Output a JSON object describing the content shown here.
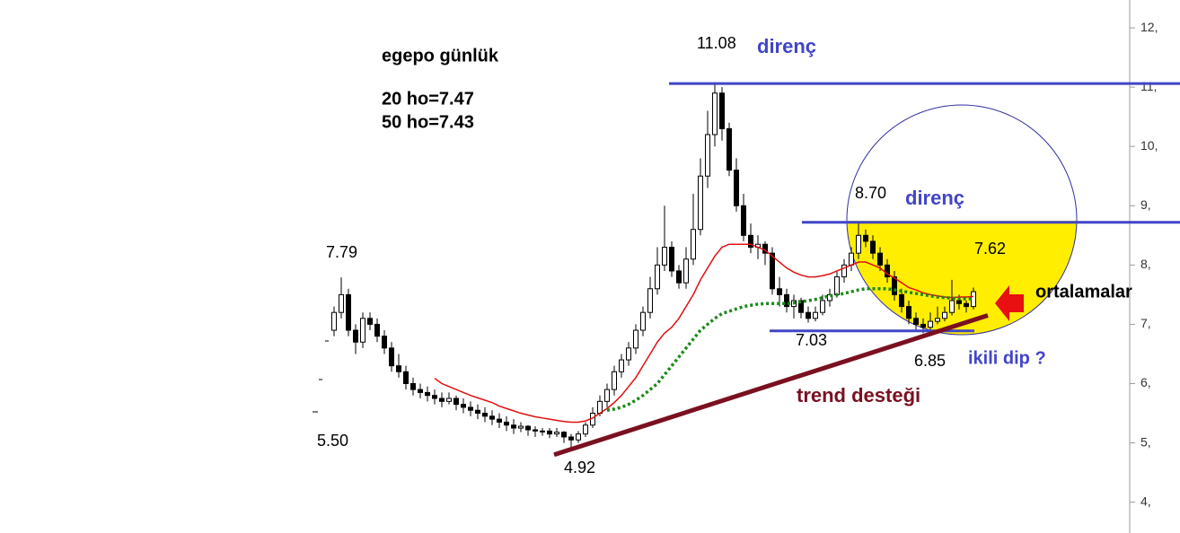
{
  "chart_data": {
    "type": "candlestick",
    "ylim": [
      3.48,
      12.47
    ],
    "yticks": [
      {
        "value": 4,
        "label": "4,"
      },
      {
        "value": 5,
        "label": "5,"
      },
      {
        "value": 6,
        "label": "6,"
      },
      {
        "value": 7,
        "label": "7,"
      },
      {
        "value": 8,
        "label": "8,"
      },
      {
        "value": 9,
        "label": "9,"
      },
      {
        "value": 10,
        "label": "10,"
      },
      {
        "value": 11,
        "label": "11,"
      },
      {
        "value": 12,
        "label": "12,"
      }
    ],
    "candles": [
      [
        6.9,
        7.3,
        6.8,
        7.2
      ],
      [
        7.2,
        7.79,
        7.1,
        7.5
      ],
      [
        7.5,
        7.6,
        6.8,
        6.9
      ],
      [
        6.9,
        7.0,
        6.5,
        6.7
      ],
      [
        6.7,
        7.2,
        6.6,
        7.1
      ],
      [
        7.1,
        7.2,
        6.9,
        7.0
      ],
      [
        7.0,
        7.1,
        6.7,
        6.8
      ],
      [
        6.8,
        6.9,
        6.5,
        6.6
      ],
      [
        6.6,
        6.7,
        6.2,
        6.3
      ],
      [
        6.3,
        6.5,
        6.1,
        6.2
      ],
      [
        6.2,
        6.3,
        5.9,
        6.0
      ],
      [
        6.0,
        6.1,
        5.8,
        5.9
      ],
      [
        5.9,
        6.0,
        5.75,
        5.85
      ],
      [
        5.85,
        5.95,
        5.7,
        5.8
      ],
      [
        5.8,
        5.9,
        5.65,
        5.75
      ],
      [
        5.75,
        5.85,
        5.6,
        5.7
      ],
      [
        5.7,
        5.85,
        5.65,
        5.75
      ],
      [
        5.75,
        5.8,
        5.55,
        5.65
      ],
      [
        5.65,
        5.75,
        5.5,
        5.6
      ],
      [
        5.6,
        5.7,
        5.45,
        5.55
      ],
      [
        5.55,
        5.65,
        5.4,
        5.5
      ],
      [
        5.5,
        5.6,
        5.35,
        5.45
      ],
      [
        5.45,
        5.55,
        5.3,
        5.4
      ],
      [
        5.4,
        5.5,
        5.25,
        5.35
      ],
      [
        5.35,
        5.45,
        5.2,
        5.3
      ],
      [
        5.3,
        5.4,
        5.15,
        5.25
      ],
      [
        5.25,
        5.35,
        5.18,
        5.28
      ],
      [
        5.28,
        5.3,
        5.12,
        5.22
      ],
      [
        5.22,
        5.28,
        5.1,
        5.2
      ],
      [
        5.2,
        5.25,
        5.12,
        5.2
      ],
      [
        5.2,
        5.25,
        5.08,
        5.15
      ],
      [
        5.15,
        5.25,
        5.1,
        5.18
      ],
      [
        5.18,
        5.2,
        5.0,
        5.1
      ],
      [
        5.1,
        5.15,
        4.92,
        5.05
      ],
      [
        5.05,
        5.2,
        5.0,
        5.15
      ],
      [
        5.15,
        5.35,
        5.1,
        5.3
      ],
      [
        5.3,
        5.6,
        5.25,
        5.5
      ],
      [
        5.5,
        5.8,
        5.45,
        5.7
      ],
      [
        5.7,
        6.0,
        5.6,
        5.9
      ],
      [
        5.9,
        6.3,
        5.8,
        6.2
      ],
      [
        6.2,
        6.5,
        6.1,
        6.4
      ],
      [
        6.4,
        6.7,
        6.3,
        6.6
      ],
      [
        6.6,
        7.0,
        6.5,
        6.9
      ],
      [
        6.9,
        7.3,
        6.8,
        7.2
      ],
      [
        7.2,
        7.8,
        7.1,
        7.6
      ],
      [
        7.6,
        8.3,
        7.5,
        8.0
      ],
      [
        8.0,
        9.0,
        7.9,
        8.3
      ],
      [
        8.3,
        8.4,
        7.8,
        7.9
      ],
      [
        7.9,
        8.0,
        7.6,
        7.7
      ],
      [
        7.7,
        8.3,
        7.6,
        8.1
      ],
      [
        8.1,
        9.2,
        8.0,
        8.6
      ],
      [
        8.6,
        9.8,
        8.5,
        9.5
      ],
      [
        9.5,
        10.6,
        9.3,
        10.2
      ],
      [
        10.2,
        11.08,
        10.0,
        10.9
      ],
      [
        10.9,
        11.0,
        10.1,
        10.3
      ],
      [
        10.3,
        10.4,
        9.5,
        9.6
      ],
      [
        9.6,
        9.8,
        8.9,
        9.0
      ],
      [
        9.0,
        9.2,
        8.4,
        8.5
      ],
      [
        8.5,
        8.7,
        8.2,
        8.3
      ],
      [
        8.3,
        8.5,
        8.1,
        8.35
      ],
      [
        8.35,
        8.4,
        8.0,
        8.2
      ],
      [
        8.2,
        8.3,
        7.5,
        7.6
      ],
      [
        7.6,
        7.8,
        7.3,
        7.5
      ],
      [
        7.5,
        7.6,
        7.2,
        7.3
      ],
      [
        7.3,
        7.5,
        7.1,
        7.4
      ],
      [
        7.4,
        7.45,
        7.1,
        7.2
      ],
      [
        7.2,
        7.3,
        7.03,
        7.1
      ],
      [
        7.1,
        7.3,
        7.05,
        7.2
      ],
      [
        7.2,
        7.5,
        7.15,
        7.4
      ],
      [
        7.4,
        7.6,
        7.3,
        7.5
      ],
      [
        7.5,
        7.9,
        7.45,
        7.8
      ],
      [
        7.8,
        8.1,
        7.7,
        8.0
      ],
      [
        8.0,
        8.3,
        7.9,
        8.2
      ],
      [
        8.2,
        8.7,
        8.1,
        8.5
      ],
      [
        8.5,
        8.6,
        8.3,
        8.4
      ],
      [
        8.4,
        8.5,
        8.1,
        8.2
      ],
      [
        8.2,
        8.3,
        7.9,
        8.0
      ],
      [
        8.0,
        8.1,
        7.7,
        7.8
      ],
      [
        7.8,
        7.9,
        7.4,
        7.5
      ],
      [
        7.5,
        7.6,
        7.2,
        7.3
      ],
      [
        7.3,
        7.4,
        7.0,
        7.1
      ],
      [
        7.1,
        7.2,
        6.9,
        7.0
      ],
      [
        7.0,
        7.1,
        6.85,
        6.95
      ],
      [
        6.95,
        7.2,
        6.9,
        7.05
      ],
      [
        7.05,
        7.3,
        7.0,
        7.1
      ],
      [
        7.1,
        7.3,
        7.05,
        7.2
      ],
      [
        7.2,
        7.75,
        7.15,
        7.4
      ],
      [
        7.4,
        7.5,
        7.25,
        7.35
      ],
      [
        7.35,
        7.4,
        7.2,
        7.3
      ],
      [
        7.3,
        7.62,
        7.25,
        7.55
      ]
    ],
    "series": [
      {
        "name": "20 ho",
        "color": "#e01010",
        "values": [
          null,
          null,
          null,
          null,
          null,
          null,
          null,
          null,
          null,
          null,
          null,
          null,
          null,
          null,
          6.09,
          6.0,
          5.95,
          5.9,
          5.85,
          5.8,
          5.76,
          5.72,
          5.68,
          5.62,
          5.58,
          5.54,
          5.5,
          5.47,
          5.44,
          5.42,
          5.4,
          5.38,
          5.36,
          5.35,
          5.35,
          5.37,
          5.42,
          5.5,
          5.58,
          5.68,
          5.8,
          5.95,
          6.1,
          6.3,
          6.5,
          6.7,
          6.85,
          6.95,
          7.1,
          7.3,
          7.5,
          7.75,
          7.95,
          8.15,
          8.3,
          8.35,
          8.35,
          8.35,
          8.35,
          8.3,
          8.25,
          8.15,
          8.05,
          7.95,
          7.88,
          7.83,
          7.8,
          7.8,
          7.82,
          7.85,
          7.9,
          7.95,
          8.0,
          8.05,
          8.05,
          8.0,
          7.95,
          7.85,
          7.78,
          7.7,
          7.62,
          7.58,
          7.53,
          7.5,
          7.48,
          7.46,
          7.45,
          7.46,
          7.46,
          7.47
        ]
      },
      {
        "name": "50 ho",
        "color": "#1a8a1a",
        "values": [
          null,
          null,
          null,
          null,
          null,
          null,
          null,
          null,
          null,
          null,
          null,
          null,
          null,
          null,
          null,
          null,
          null,
          null,
          null,
          null,
          null,
          null,
          null,
          null,
          null,
          null,
          null,
          null,
          null,
          null,
          null,
          null,
          null,
          null,
          null,
          null,
          null,
          null,
          5.55,
          5.57,
          5.6,
          5.65,
          5.72,
          5.8,
          5.9,
          6.0,
          6.15,
          6.3,
          6.45,
          6.6,
          6.75,
          6.9,
          7.0,
          7.1,
          7.18,
          7.22,
          7.26,
          7.3,
          7.32,
          7.34,
          7.35,
          7.35,
          7.35,
          7.35,
          7.36,
          7.38,
          7.4,
          7.42,
          7.45,
          7.48,
          7.5,
          7.52,
          7.55,
          7.58,
          7.6,
          7.6,
          7.6,
          7.6,
          7.58,
          7.56,
          7.54,
          7.52,
          7.5,
          7.48,
          7.46,
          7.45,
          7.44,
          7.43,
          7.43,
          7.43
        ]
      }
    ],
    "resistance_levels": [
      11.06,
      8.72
    ],
    "support_level": 6.89,
    "trend_line": [
      4.8,
      7.15
    ],
    "level_color": "#4045c8",
    "trend_color": "#7a1020",
    "annotations": [
      "egepo günlük",
      "20 ho=7.47",
      "50 ho=7.43",
      "11.08",
      "direnç",
      "8.70",
      "direnç",
      "7.62",
      "ortalamalar",
      "7.79",
      "5.50",
      "4.92",
      "7.03",
      "6.85",
      "ikili dip ?",
      "trend desteği"
    ]
  }
}
